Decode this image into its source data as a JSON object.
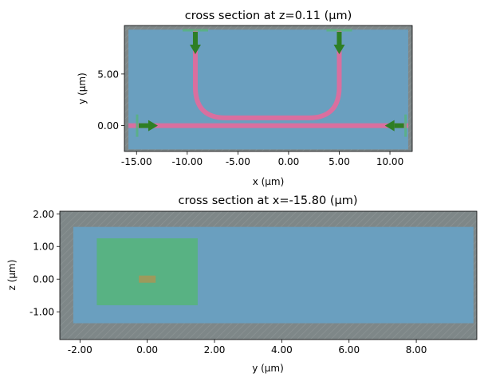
{
  "colors": {
    "background": "#ffffff",
    "outer_gray": "#7e8788",
    "domain_blue": "#6a9fbf",
    "waveguide_pink": "#d96f9f",
    "source_green": "#56b47c",
    "arrow_green": "#2e7f24",
    "bar_olive": "#9c9a5c"
  },
  "chart_data": [
    {
      "type": "cross_section",
      "title": "cross section at z=0.11 (μm)",
      "xlabel": "x (μm)",
      "ylabel": "y (μm)",
      "xlim": [
        -16.2,
        12.2
      ],
      "ylim": [
        -2.5,
        9.7
      ],
      "xticks": [
        -15,
        -10,
        -5,
        0,
        5,
        10
      ],
      "xtick_labels": [
        "-15.00",
        "-10.00",
        "-5.00",
        "0.00",
        "5.00",
        "10.00"
      ],
      "yticks": [
        0,
        5
      ],
      "ytick_labels": [
        "0.00",
        "5.00"
      ],
      "domain_rect": {
        "x": [
          -15.8,
          11.8
        ],
        "y": [
          -2.3,
          9.3
        ]
      },
      "waveguide": {
        "bus": {
          "x": [
            -15.8,
            11.8
          ],
          "y": 0
        },
        "u_bend": {
          "left_x": -9.2,
          "right_x": 5.0,
          "top_y": 9.3,
          "bottom_y": 0.75,
          "radius": 3.0
        }
      },
      "ports": [
        {
          "x": -14.0,
          "y": 0,
          "direction": "+x"
        },
        {
          "x": 10.6,
          "y": 0,
          "direction": "-x"
        },
        {
          "x": -9.2,
          "y": 8.0,
          "direction": "-y"
        },
        {
          "x": 5.0,
          "y": 8.0,
          "direction": "-y"
        }
      ]
    },
    {
      "type": "cross_section",
      "title": "cross section at x=-15.80 (μm)",
      "xlabel": "y (μm)",
      "ylabel": "z (μm)",
      "xlim": [
        -2.6,
        9.8
      ],
      "ylim": [
        -1.85,
        2.08
      ],
      "xticks": [
        -2,
        0,
        2,
        4,
        6,
        8
      ],
      "xtick_labels": [
        "-2.00",
        "0.00",
        "2.00",
        "4.00",
        "6.00",
        "8.00"
      ],
      "yticks": [
        -1,
        0,
        1,
        2
      ],
      "ytick_labels": [
        "-1.00",
        "0.00",
        "1.00",
        "2.00"
      ],
      "domain_rect": {
        "x": [
          -2.2,
          9.7
        ],
        "y": [
          -1.35,
          1.6
        ]
      },
      "source_rect": {
        "x": [
          -1.5,
          1.5
        ],
        "y": [
          -0.8,
          1.25
        ]
      },
      "waveguide_rect": {
        "x": [
          -0.25,
          0.25
        ],
        "y": [
          -0.11,
          0.11
        ]
      }
    }
  ]
}
